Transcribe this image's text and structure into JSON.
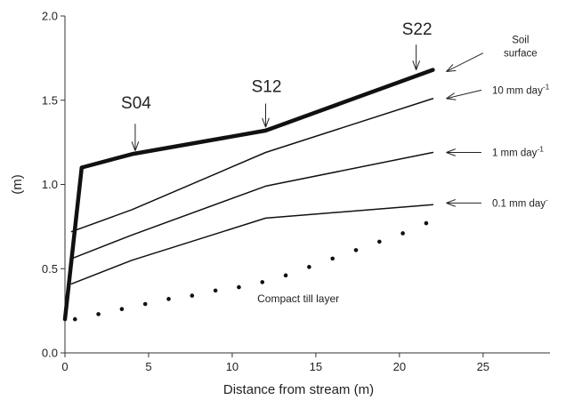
{
  "chart_data": {
    "type": "line",
    "title": "",
    "xlabel": "Distance from stream (m)",
    "ylabel": "(m)",
    "xlim": [
      0,
      29
    ],
    "ylim": [
      0,
      2.0
    ],
    "xticks": [
      {
        "value": 0,
        "label": "0"
      },
      {
        "value": 5,
        "label": "5"
      },
      {
        "value": 10,
        "label": "10"
      },
      {
        "value": 15,
        "label": "15"
      },
      {
        "value": 20,
        "label": "20"
      },
      {
        "value": 25,
        "label": "25"
      }
    ],
    "yticks": [
      {
        "value": 0,
        "label": "0.0"
      },
      {
        "value": 0.5,
        "label": "0.5"
      },
      {
        "value": 1.0,
        "label": "1.0"
      },
      {
        "value": 1.5,
        "label": "1.5"
      },
      {
        "value": 2.0,
        "label": "2.0"
      }
    ],
    "grid": false,
    "series": [
      {
        "key": "soil_surface",
        "style": "thick",
        "x": [
          0,
          1,
          4,
          12,
          22
        ],
        "y": [
          0.2,
          1.1,
          1.18,
          1.32,
          1.68
        ]
      },
      {
        "key": "water_10mm",
        "style": "thin",
        "x": [
          0.4,
          4,
          12,
          22
        ],
        "y": [
          0.72,
          0.85,
          1.19,
          1.51
        ]
      },
      {
        "key": "water_1mm",
        "style": "thin",
        "x": [
          0.4,
          4,
          12,
          22
        ],
        "y": [
          0.56,
          0.7,
          0.99,
          1.19
        ]
      },
      {
        "key": "water_0_1mm",
        "style": "thin",
        "x": [
          0.4,
          4,
          12,
          22
        ],
        "y": [
          0.41,
          0.55,
          0.8,
          0.88
        ]
      },
      {
        "key": "compact_till",
        "style": "dotted",
        "x": [
          0.6,
          2,
          3.4,
          4.8,
          6.2,
          7.6,
          9.0,
          10.4,
          11.8,
          13.2,
          14.6,
          16.0,
          17.4,
          18.8,
          20.2,
          21.6
        ],
        "y": [
          0.2,
          0.23,
          0.26,
          0.29,
          0.32,
          0.34,
          0.37,
          0.39,
          0.42,
          0.46,
          0.51,
          0.56,
          0.61,
          0.66,
          0.71,
          0.77
        ]
      }
    ],
    "curve_labels": [
      {
        "key": "soil_surface",
        "lines": [
          "Soil",
          "surface"
        ],
        "arrow_from": [
          25,
          1.78
        ],
        "arrow_to": [
          22.8,
          1.67
        ]
      },
      {
        "key": "water_10mm",
        "text": "10 mm day",
        "sup": "-1",
        "arrow_from": [
          24.9,
          1.56
        ],
        "arrow_to": [
          22.8,
          1.51
        ]
      },
      {
        "key": "water_1mm",
        "text": "1  mm day",
        "sup": "-1",
        "arrow_from": [
          24.9,
          1.19
        ],
        "arrow_to": [
          22.8,
          1.19
        ]
      },
      {
        "key": "water_0_1mm",
        "text": "0.1 mm day",
        "sup": "-",
        "arrow_from": [
          24.9,
          0.89
        ],
        "arrow_to": [
          22.8,
          0.89
        ]
      }
    ],
    "site_markers": [
      {
        "label": "S04",
        "x": 4.2,
        "y_text": 1.45,
        "arrow_top": 1.36,
        "arrow_tip": 1.2
      },
      {
        "label": "S12",
        "x": 12.0,
        "y_text": 1.55,
        "arrow_top": 1.48,
        "arrow_tip": 1.34
      },
      {
        "label": "S22",
        "x": 21.0,
        "y_text": 1.89,
        "arrow_top": 1.83,
        "arrow_tip": 1.68
      }
    ],
    "annotations": [
      {
        "text": "Compact till layer",
        "x": 11.5,
        "y": 0.3
      }
    ]
  }
}
